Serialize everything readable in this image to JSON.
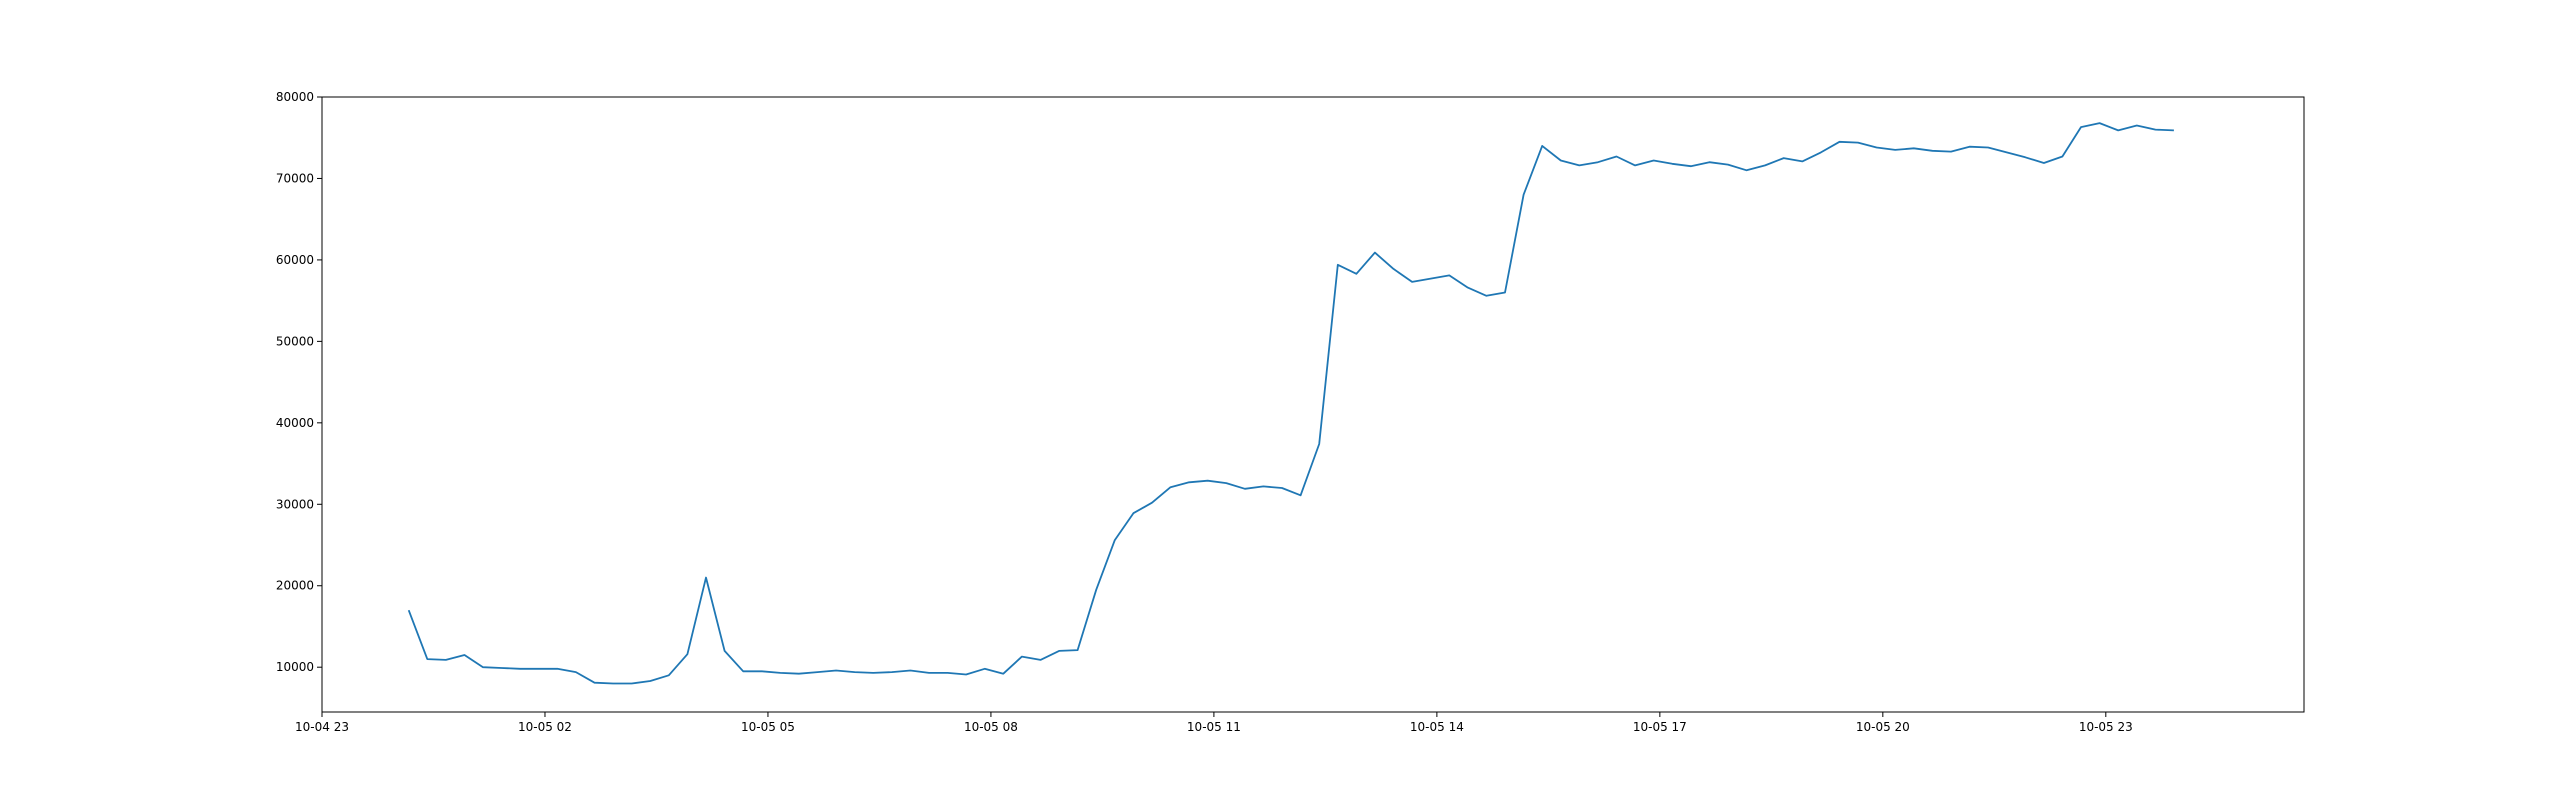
{
  "chart_data": {
    "type": "line",
    "title": "",
    "xlabel": "",
    "ylabel": "",
    "grid": false,
    "legend": "none",
    "line_color": "#1f77b4",
    "xlim": [
      "2023-10-04 23:00",
      "2023-10-06 01:40"
    ],
    "ylim": [
      4500,
      80000
    ],
    "xtick_labels": [
      "10-04 23",
      "10-05 02",
      "10-05 05",
      "10-05 08",
      "10-05 11",
      "10-05 14",
      "10-05 17",
      "10-05 20",
      "10-05 23"
    ],
    "ytick_labels": [
      "10000",
      "20000",
      "30000",
      "40000",
      "50000",
      "60000",
      "70000",
      "80000"
    ],
    "series": [
      {
        "x": [
          "2023-10-05 00:10",
          "2023-10-05 00:25",
          "2023-10-05 00:40",
          "2023-10-05 00:55",
          "2023-10-05 01:10",
          "2023-10-05 01:25",
          "2023-10-05 01:40",
          "2023-10-05 01:55",
          "2023-10-05 02:10",
          "2023-10-05 02:25",
          "2023-10-05 02:40",
          "2023-10-05 02:55",
          "2023-10-05 03:10",
          "2023-10-05 03:25",
          "2023-10-05 03:40",
          "2023-10-05 03:55",
          "2023-10-05 04:10",
          "2023-10-05 04:25",
          "2023-10-05 04:40",
          "2023-10-05 04:55",
          "2023-10-05 05:10",
          "2023-10-05 05:25",
          "2023-10-05 05:40",
          "2023-10-05 05:55",
          "2023-10-05 06:10",
          "2023-10-05 06:25",
          "2023-10-05 06:40",
          "2023-10-05 06:55",
          "2023-10-05 07:10",
          "2023-10-05 07:25",
          "2023-10-05 07:40",
          "2023-10-05 07:55",
          "2023-10-05 08:10",
          "2023-10-05 08:25",
          "2023-10-05 08:40",
          "2023-10-05 08:55",
          "2023-10-05 09:10",
          "2023-10-05 09:25",
          "2023-10-05 09:40",
          "2023-10-05 09:55",
          "2023-10-05 10:10",
          "2023-10-05 10:25",
          "2023-10-05 10:40",
          "2023-10-05 10:55",
          "2023-10-05 11:10",
          "2023-10-05 11:25",
          "2023-10-05 11:40",
          "2023-10-05 11:55",
          "2023-10-05 12:10",
          "2023-10-05 12:25",
          "2023-10-05 12:40",
          "2023-10-05 12:55",
          "2023-10-05 13:10",
          "2023-10-05 13:25",
          "2023-10-05 13:40",
          "2023-10-05 13:55",
          "2023-10-05 14:10",
          "2023-10-05 14:25",
          "2023-10-05 14:40",
          "2023-10-05 14:55",
          "2023-10-05 15:10",
          "2023-10-05 15:25",
          "2023-10-05 15:40",
          "2023-10-05 15:55",
          "2023-10-05 16:10",
          "2023-10-05 16:25",
          "2023-10-05 16:40",
          "2023-10-05 16:55",
          "2023-10-05 17:10",
          "2023-10-05 17:25",
          "2023-10-05 17:40",
          "2023-10-05 17:55",
          "2023-10-05 18:10",
          "2023-10-05 18:25",
          "2023-10-05 18:40",
          "2023-10-05 18:55",
          "2023-10-05 19:10",
          "2023-10-05 19:25",
          "2023-10-05 19:40",
          "2023-10-05 19:55",
          "2023-10-05 20:10",
          "2023-10-05 20:25",
          "2023-10-05 20:40",
          "2023-10-05 20:55",
          "2023-10-05 21:10",
          "2023-10-05 21:25",
          "2023-10-05 21:40",
          "2023-10-05 21:55",
          "2023-10-05 22:10",
          "2023-10-05 22:25",
          "2023-10-05 22:40",
          "2023-10-05 22:55",
          "2023-10-05 23:10",
          "2023-10-05 23:25",
          "2023-10-05 23:40",
          "2023-10-05 23:55"
        ],
        "y": [
          17000,
          11000,
          10900,
          11500,
          10000,
          9900,
          9800,
          9800,
          9800,
          9400,
          8100,
          8000,
          8000,
          8300,
          9000,
          11600,
          21000,
          12000,
          9500,
          9500,
          9300,
          9200,
          9400,
          9600,
          9400,
          9300,
          9400,
          9600,
          9300,
          9300,
          9100,
          9800,
          9200,
          11300,
          10900,
          12000,
          12100,
          19500,
          25600,
          28900,
          30200,
          32100,
          32700,
          32900,
          32600,
          31900,
          32200,
          32000,
          31100,
          37400,
          59400,
          58300,
          60900,
          58900,
          57300,
          57700,
          58100,
          56600,
          55600,
          56000,
          68000,
          74000,
          72200,
          71600,
          72000,
          72700,
          71600,
          72200,
          71800,
          71500,
          72000,
          71700,
          71000,
          71600,
          72500,
          72100,
          73200,
          74500,
          74400,
          73800,
          73500,
          73700,
          73400,
          73300,
          73900,
          73800,
          73200,
          72600,
          71900,
          72700,
          76300,
          76800,
          75900,
          76500,
          76000,
          75900
        ]
      }
    ]
  }
}
